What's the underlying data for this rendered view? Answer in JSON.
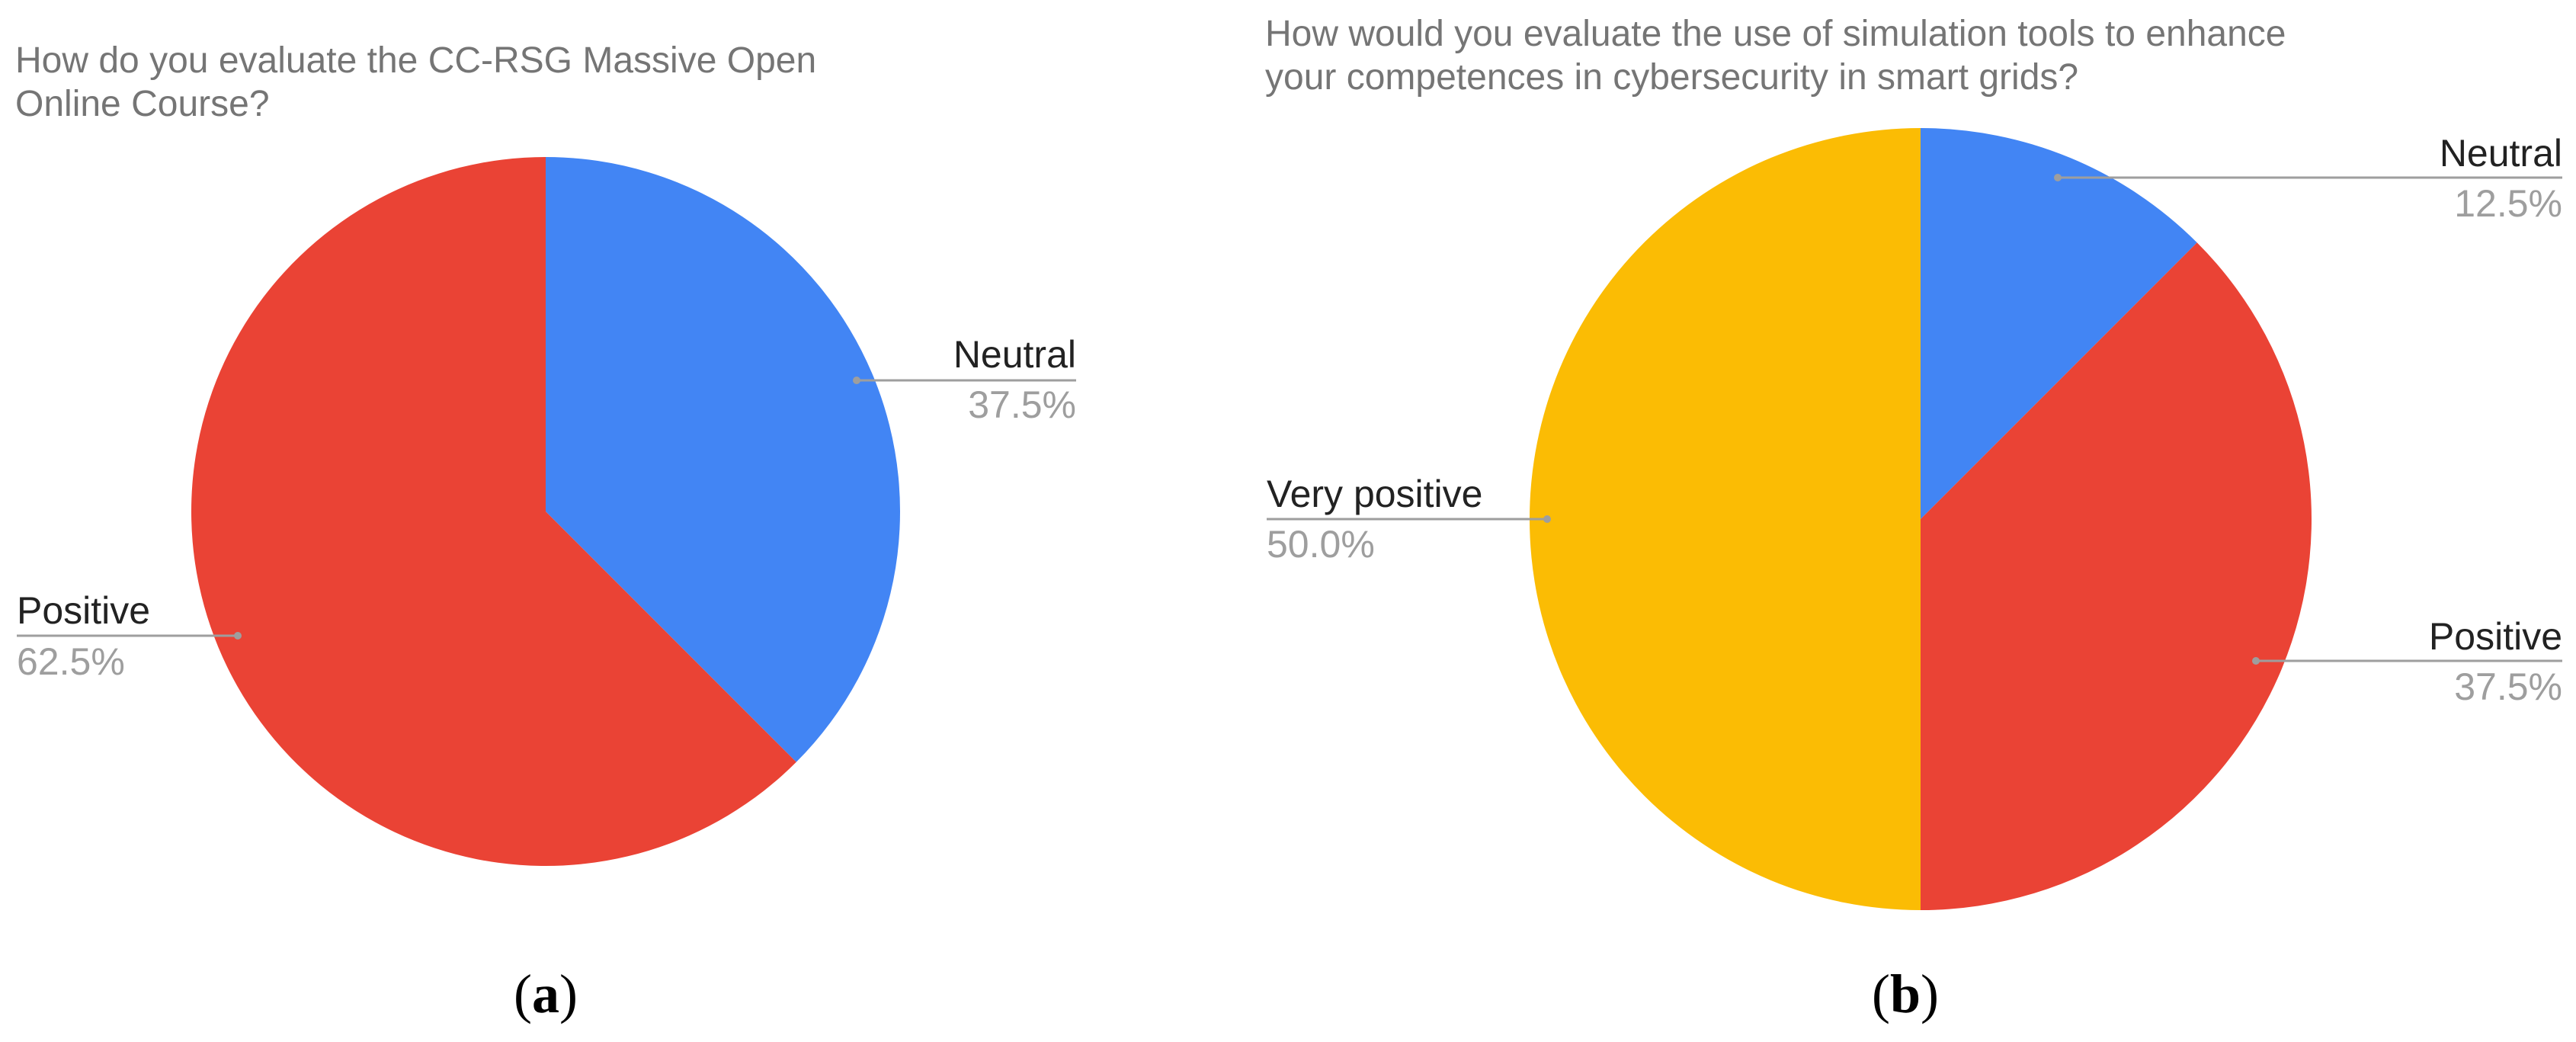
{
  "chart_data": [
    {
      "type": "pie",
      "panel_label": "a",
      "title_lines": [
        "How do you evaluate the CC-RSG Massive Open",
        "Online Course?"
      ],
      "slices": [
        {
          "label": "Neutral",
          "value": 37.5,
          "value_label": "37.5%",
          "color": "#4285F4"
        },
        {
          "label": "Positive",
          "value": 62.5,
          "value_label": "62.5%",
          "color": "#EA4335"
        }
      ],
      "start_angle_deg": 0,
      "direction": "clockwise",
      "legend": "none"
    },
    {
      "type": "pie",
      "panel_label": "b",
      "title_lines": [
        "How would you evaluate the use of simulation tools to enhance",
        "your competences in cybersecurity in smart  grids?"
      ],
      "slices": [
        {
          "label": "Neutral",
          "value": 12.5,
          "value_label": "12.5%",
          "color": "#4285F4"
        },
        {
          "label": "Positive",
          "value": 37.5,
          "value_label": "37.5%",
          "color": "#EA4335"
        },
        {
          "label": "Very positive",
          "value": 50.0,
          "value_label": "50.0%",
          "color": "#FBBC04"
        }
      ],
      "start_angle_deg": 0,
      "direction": "clockwise",
      "legend": "none"
    }
  ]
}
